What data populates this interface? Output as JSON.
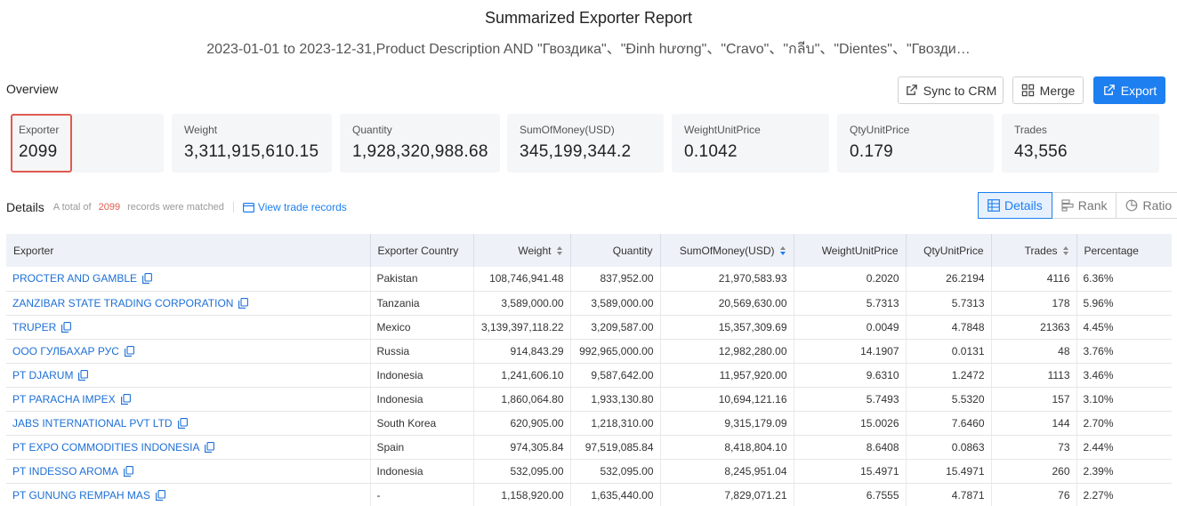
{
  "report": {
    "title": "Summarized Exporter Report",
    "subtitle": "2023-01-01 to 2023-12-31,Product Description AND \"Гвоздика\"、\"Đinh hương\"、\"Cravo\"、\"กลีบ\"、\"Dientes\"、\"Гвозди…"
  },
  "overview": {
    "label": "Overview",
    "actions": {
      "sync": "Sync to CRM",
      "merge": "Merge",
      "export": "Export"
    },
    "stats": [
      {
        "label": "Exporter",
        "value": "2099"
      },
      {
        "label": "Weight",
        "value": "3,311,915,610.15"
      },
      {
        "label": "Quantity",
        "value": "1,928,320,988.68"
      },
      {
        "label": "SumOfMoney(USD)",
        "value": "345,199,344.2"
      },
      {
        "label": "WeightUnitPrice",
        "value": "0.1042"
      },
      {
        "label": "QtyUnitPrice",
        "value": "0.179"
      },
      {
        "label": "Trades",
        "value": "43,556"
      }
    ]
  },
  "details": {
    "title": "Details",
    "prefix": "A total of",
    "count": "2099",
    "suffix": "records were matched",
    "view_link": "View trade records",
    "tabs": {
      "details": "Details",
      "rank": "Rank",
      "ratio": "Ratio"
    }
  },
  "table": {
    "headers": [
      "Exporter",
      "Exporter Country",
      "Weight",
      "Quantity",
      "SumOfMoney(USD)",
      "WeightUnitPrice",
      "QtyUnitPrice",
      "Trades",
      "Percentage"
    ],
    "rows": [
      [
        "PROCTER AND GAMBLE",
        "Pakistan",
        "108,746,941.48",
        "837,952.00",
        "21,970,583.93",
        "0.2020",
        "26.2194",
        "4116",
        "6.36%"
      ],
      [
        "ZANZIBAR STATE TRADING CORPORATION",
        "Tanzania",
        "3,589,000.00",
        "3,589,000.00",
        "20,569,630.00",
        "5.7313",
        "5.7313",
        "178",
        "5.96%"
      ],
      [
        "TRUPER",
        "Mexico",
        "3,139,397,118.22",
        "3,209,587.00",
        "15,357,309.69",
        "0.0049",
        "4.7848",
        "21363",
        "4.45%"
      ],
      [
        "ООО ГУЛБАХАР РУС",
        "Russia",
        "914,843.29",
        "992,965,000.00",
        "12,982,280.00",
        "14.1907",
        "0.0131",
        "48",
        "3.76%"
      ],
      [
        "PT DJARUM",
        "Indonesia",
        "1,241,606.10",
        "9,587,642.00",
        "11,957,920.00",
        "9.6310",
        "1.2472",
        "1113",
        "3.46%"
      ],
      [
        "PT PARACHA IMPEX",
        "Indonesia",
        "1,860,064.80",
        "1,933,130.80",
        "10,694,121.16",
        "5.7493",
        "5.5320",
        "157",
        "3.10%"
      ],
      [
        "JABS INTERNATIONAL PVT LTD",
        "South Korea",
        "620,905.00",
        "1,218,310.00",
        "9,315,179.09",
        "15.0026",
        "7.6460",
        "144",
        "2.70%"
      ],
      [
        "PT EXPO COMMODITIES INDONESIA",
        "Spain",
        "974,305.84",
        "97,519,085.84",
        "8,418,804.10",
        "8.6408",
        "0.0863",
        "73",
        "2.44%"
      ],
      [
        "PT INDESSO AROMA",
        "Indonesia",
        "532,095.00",
        "532,095.00",
        "8,245,951.04",
        "15.4971",
        "15.4971",
        "260",
        "2.39%"
      ],
      [
        "PT GUNUNG REMPAH MAS",
        "-",
        "1,158,920.00",
        "1,635,440.00",
        "7,829,071.21",
        "6.7555",
        "4.7871",
        "76",
        "2.27%"
      ]
    ]
  }
}
